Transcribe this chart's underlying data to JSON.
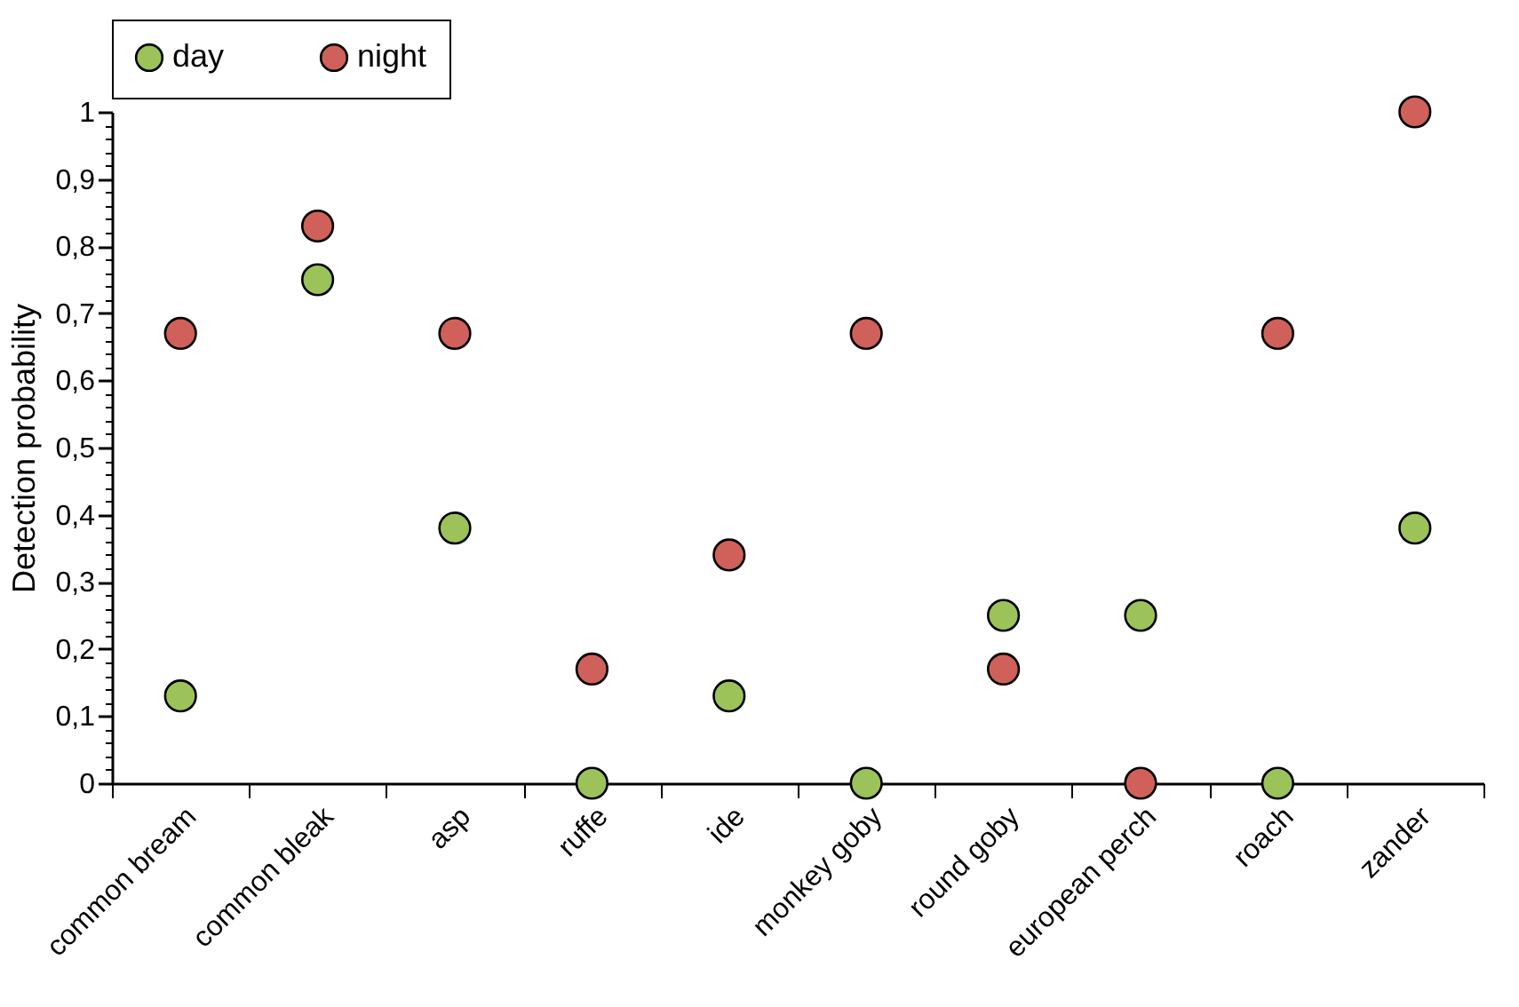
{
  "chart_data": {
    "type": "scatter",
    "ylabel": "Detection probability",
    "categories": [
      "common bream",
      "common bleak",
      "asp",
      "ruffe",
      "ide",
      "monkey goby",
      "round goby",
      "european perch",
      "roach",
      "zander"
    ],
    "series": [
      {
        "name": "day",
        "color": "#9bc35a",
        "values": [
          0.13,
          0.75,
          0.38,
          0,
          0.13,
          0,
          0.25,
          0.25,
          0,
          0.38
        ]
      },
      {
        "name": "night",
        "color": "#d0605a",
        "values": [
          0.67,
          0.83,
          0.67,
          0.17,
          0.34,
          0.67,
          0.17,
          0,
          0.67,
          1
        ]
      }
    ],
    "ylim": [
      0,
      1
    ],
    "yticks": [
      {
        "value": 0,
        "label": "0"
      },
      {
        "value": 0.02,
        "label": null
      },
      {
        "value": 0.04,
        "label": null
      },
      {
        "value": 0.06,
        "label": null
      },
      {
        "value": 0.08,
        "label": null
      },
      {
        "value": 0.1,
        "label": "0,1"
      },
      {
        "value": 0.12,
        "label": null
      },
      {
        "value": 0.14,
        "label": null
      },
      {
        "value": 0.16,
        "label": null
      },
      {
        "value": 0.18,
        "label": null
      },
      {
        "value": 0.2,
        "label": "0,2"
      },
      {
        "value": 0.22,
        "label": null
      },
      {
        "value": 0.24,
        "label": null
      },
      {
        "value": 0.26,
        "label": null
      },
      {
        "value": 0.28,
        "label": null
      },
      {
        "value": 0.3,
        "label": "0,3"
      },
      {
        "value": 0.32,
        "label": null
      },
      {
        "value": 0.34,
        "label": null
      },
      {
        "value": 0.36,
        "label": null
      },
      {
        "value": 0.38,
        "label": null
      },
      {
        "value": 0.4,
        "label": "0,4"
      },
      {
        "value": 0.42,
        "label": null
      },
      {
        "value": 0.44,
        "label": null
      },
      {
        "value": 0.46,
        "label": null
      },
      {
        "value": 0.48,
        "label": null
      },
      {
        "value": 0.5,
        "label": "0,5"
      },
      {
        "value": 0.52,
        "label": null
      },
      {
        "value": 0.54,
        "label": null
      },
      {
        "value": 0.56,
        "label": null
      },
      {
        "value": 0.58,
        "label": null
      },
      {
        "value": 0.6,
        "label": "0,6"
      },
      {
        "value": 0.62,
        "label": null
      },
      {
        "value": 0.64,
        "label": null
      },
      {
        "value": 0.66,
        "label": null
      },
      {
        "value": 0.68,
        "label": null
      },
      {
        "value": 0.7,
        "label": "0,7"
      },
      {
        "value": 0.72,
        "label": null
      },
      {
        "value": 0.74,
        "label": null
      },
      {
        "value": 0.76,
        "label": null
      },
      {
        "value": 0.78,
        "label": null
      },
      {
        "value": 0.8,
        "label": "0,8"
      },
      {
        "value": 0.82,
        "label": null
      },
      {
        "value": 0.84,
        "label": null
      },
      {
        "value": 0.86,
        "label": null
      },
      {
        "value": 0.88,
        "label": null
      },
      {
        "value": 0.9,
        "label": "0,9"
      },
      {
        "value": 0.92,
        "label": null
      },
      {
        "value": 0.94,
        "label": null
      },
      {
        "value": 0.96,
        "label": null
      },
      {
        "value": 0.98,
        "label": null
      },
      {
        "value": 1,
        "label": "1"
      }
    ],
    "grid": false,
    "legend": "top",
    "marker": "circle"
  }
}
